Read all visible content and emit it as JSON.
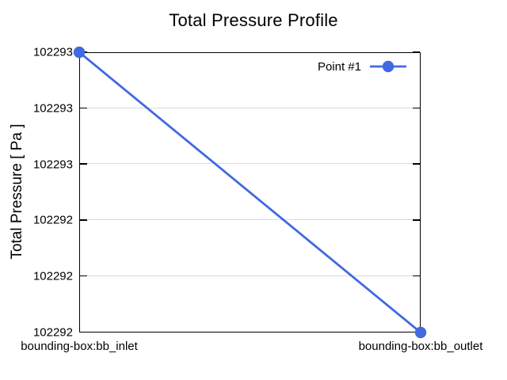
{
  "chart_data": {
    "type": "line",
    "title": "Total Pressure Profile",
    "xlabel": "",
    "ylabel": "Total Pressure [ Pa ]",
    "categories": [
      "bounding-box:bb_inlet",
      "bounding-box:bb_outlet"
    ],
    "series": [
      {
        "name": "Point #1",
        "values": [
          102293.0,
          102292.0
        ],
        "color": "#4169e1",
        "marker": "filled-circle",
        "line_width": 2.8
      }
    ],
    "ylim": [
      102292.0,
      102293.0
    ],
    "y_ticks": {
      "labels": [
        "102293",
        "102293",
        "102293",
        "102292",
        "102292",
        "102292"
      ],
      "values": [
        102293.0,
        102292.8,
        102292.6,
        102292.4,
        102292.2,
        102292.0
      ]
    },
    "grid": "horizontal-dotted",
    "legend_position": "top-right-inside",
    "background_color": "#ffffff",
    "axis_color": "#000000",
    "grid_color": "#b5b5b5"
  }
}
